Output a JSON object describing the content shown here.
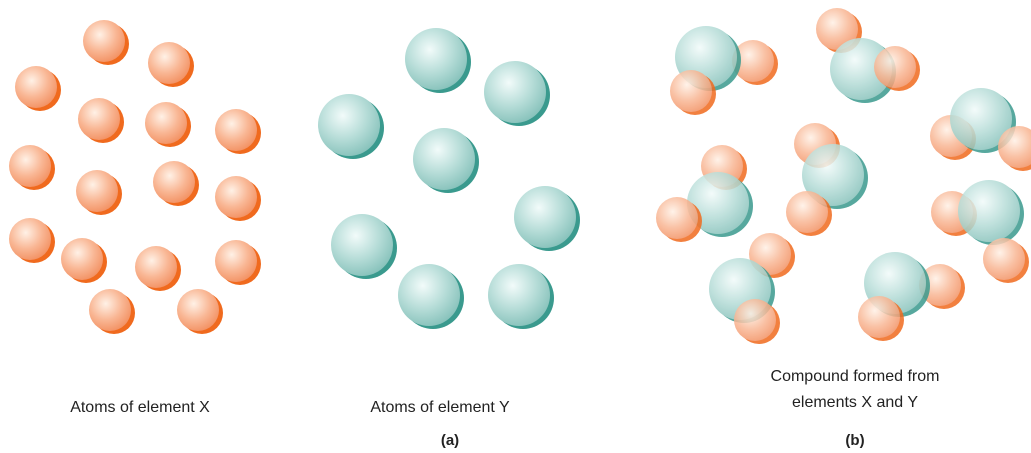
{
  "panels": [
    {
      "caption": "Atoms of element X"
    },
    {
      "caption": "Atoms of element Y"
    },
    {
      "caption": [
        "Compound formed from",
        "elements X and Y"
      ]
    }
  ],
  "labels": [
    "(a)",
    "(b)"
  ]
}
